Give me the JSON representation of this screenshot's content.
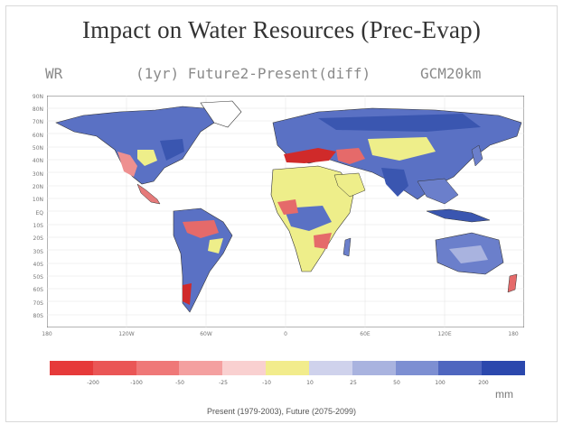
{
  "title": "Impact on Water Resources (Prec-Evap)",
  "subtitle": {
    "left": "WR",
    "middle": "(1yr) Future2-Present(diff)",
    "right": "GCM20km"
  },
  "map": {
    "y_ticks": [
      "90N",
      "80N",
      "70N",
      "60N",
      "50N",
      "40N",
      "30N",
      "20N",
      "10N",
      "EQ",
      "10S",
      "20S",
      "30S",
      "40S",
      "50S",
      "60S",
      "70S",
      "80S"
    ],
    "x_ticks": [
      "180",
      "120W",
      "60W",
      "0",
      "60E",
      "120E",
      "180"
    ],
    "colors": {
      "ocean": "#ffffff",
      "grid": "#dddddd",
      "coast": "#333333"
    },
    "land_colors": {
      "wet": "#3a56b0",
      "medium_wet": "#6b7fcb",
      "slight_wet": "#a9b3df",
      "neutral": "#eeee8a",
      "dry": "#e56a6a",
      "very_dry": "#d02a2a"
    }
  },
  "legend": {
    "colors": [
      "#e63a3a",
      "#ea5656",
      "#ef7878",
      "#f4a0a0",
      "#f9d0d0",
      "#f2ec8c",
      "#cfd2ec",
      "#a9b3df",
      "#7d8fd2",
      "#4f66bf",
      "#2b48ad"
    ],
    "labels": [
      "-200",
      "-100",
      "-50",
      "-25",
      "-10",
      "10",
      "25",
      "50",
      "100",
      "200"
    ],
    "unit": "mm"
  },
  "footer": "Present (1979-2003), Future (2075-2099)"
}
